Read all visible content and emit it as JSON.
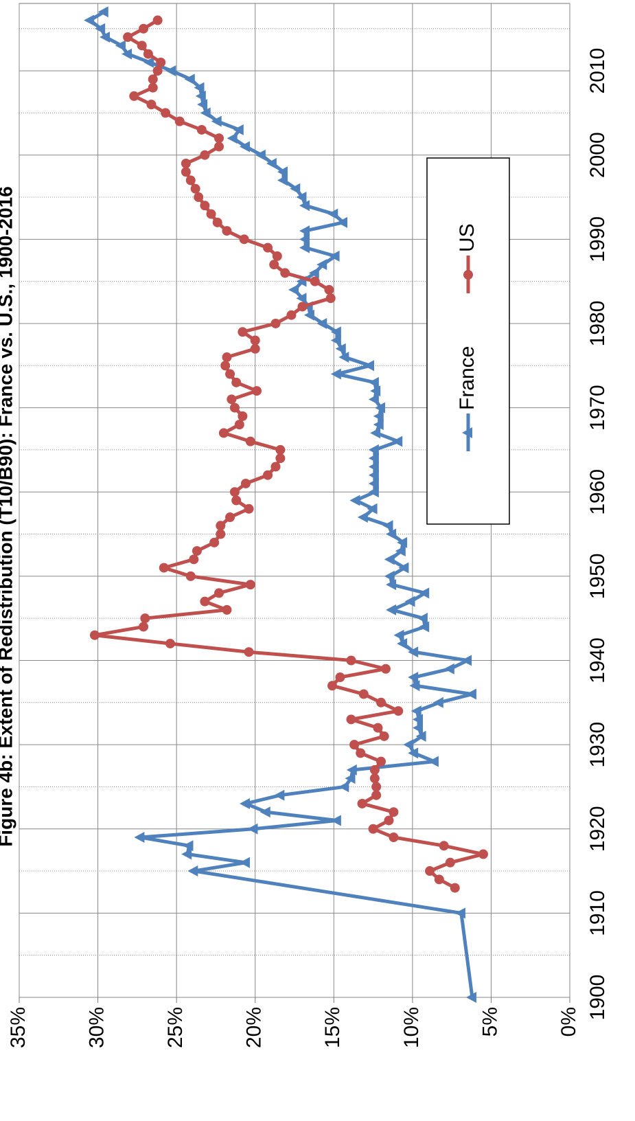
{
  "chart_data": {
    "type": "line",
    "title": "Figure 4b: Extent of Redistribution (T10/B90): France vs. U.S., 1900-2016",
    "xlim": [
      1900,
      2018
    ],
    "xticks": [
      1900,
      1910,
      1920,
      1930,
      1940,
      1950,
      1960,
      1970,
      1980,
      1990,
      2000,
      2010
    ],
    "xminorticks": [
      1905,
      1915,
      1925,
      1935,
      1945,
      1955,
      1965,
      1975,
      1985,
      1995,
      2005,
      2015
    ],
    "ylim": [
      0,
      35
    ],
    "yticks": [
      {
        "value": 0,
        "label": "0%"
      },
      {
        "value": 5,
        "label": "5%"
      },
      {
        "value": 10,
        "label": "10%"
      },
      {
        "value": 15,
        "label": "15%"
      },
      {
        "value": 20,
        "label": "20%"
      },
      {
        "value": 25,
        "label": "25%"
      },
      {
        "value": 30,
        "label": "30%"
      },
      {
        "value": 35,
        "label": "35%"
      }
    ],
    "grid": true,
    "legend": "lower right",
    "series": [
      {
        "name": "France",
        "color": "#4f81bd",
        "marker": "triangle",
        "x": [
          1900,
          1910,
          1915,
          1916,
          1917,
          1918,
          1919,
          1920,
          1921,
          1922,
          1923,
          1924,
          1925,
          1926,
          1927,
          1928,
          1929,
          1930,
          1931,
          1932,
          1933,
          1934,
          1935,
          1936,
          1937,
          1938,
          1939,
          1940,
          1941,
          1942,
          1943,
          1944,
          1945,
          1946,
          1947,
          1948,
          1949,
          1950,
          1951,
          1952,
          1953,
          1954,
          1955,
          1956,
          1957,
          1958,
          1959,
          1960,
          1961,
          1962,
          1963,
          1964,
          1965,
          1966,
          1967,
          1968,
          1969,
          1970,
          1971,
          1972,
          1973,
          1974,
          1975,
          1976,
          1977,
          1978,
          1979,
          1980,
          1981,
          1982,
          1983,
          1984,
          1985,
          1986,
          1987,
          1988,
          1989,
          1990,
          1991,
          1992,
          1993,
          1994,
          1995,
          1996,
          1997,
          1998,
          1999,
          2000,
          2001,
          2002,
          2003,
          2004,
          2005,
          2006,
          2007,
          2008,
          2009,
          2010,
          2011,
          2012,
          2013,
          2014,
          2015,
          2016,
          2017
        ],
        "values": [
          6.2,
          6.9,
          23.9,
          20.6,
          24.3,
          24.2,
          27.3,
          20.1,
          14.8,
          19.3,
          20.6,
          18.4,
          14.3,
          13.9,
          13.8,
          8.6,
          9.9,
          10.2,
          9.4,
          9.6,
          9.6,
          9.7,
          8.3,
          6.2,
          9.8,
          9.9,
          7.6,
          6.5,
          9.9,
          10.6,
          10.8,
          9.2,
          9.3,
          11.3,
          10.1,
          9.2,
          11.3,
          11.4,
          10.5,
          11.4,
          10.7,
          10.6,
          11.3,
          11.5,
          13.1,
          12.5,
          13.6,
          12.4,
          12.4,
          12.4,
          12.4,
          12.4,
          12.4,
          10.9,
          12.3,
          12.1,
          12.1,
          12.0,
          12.4,
          12.3,
          12.4,
          14.8,
          12.7,
          14.3,
          14.5,
          14.8,
          14.8,
          15.7,
          16.5,
          16.6,
          17.0,
          17.5,
          17.0,
          16.2,
          15.7,
          14.9,
          16.8,
          16.8,
          16.8,
          14.4,
          15.0,
          16.8,
          17.0,
          17.4,
          18.2,
          18.2,
          18.9,
          19.6,
          20.6,
          21.4,
          21.0,
          22.4,
          23.1,
          23.3,
          23.4,
          23.5,
          24.1,
          25.3,
          26.7,
          28.1,
          28.5,
          29.5,
          29.8,
          30.5,
          29.6
        ]
      },
      {
        "name": "US",
        "color": "#c0504d",
        "marker": "circle",
        "x": [
          1913,
          1914,
          1915,
          1916,
          1917,
          1918,
          1919,
          1920,
          1921,
          1922,
          1923,
          1924,
          1925,
          1926,
          1927,
          1928,
          1929,
          1930,
          1931,
          1932,
          1933,
          1934,
          1935,
          1936,
          1937,
          1938,
          1939,
          1940,
          1941,
          1942,
          1943,
          1944,
          1945,
          1946,
          1947,
          1948,
          1949,
          1950,
          1951,
          1952,
          1953,
          1954,
          1955,
          1956,
          1957,
          1958,
          1959,
          1960,
          1961,
          1962,
          1963,
          1964,
          1965,
          1966,
          1967,
          1968,
          1969,
          1970,
          1971,
          1972,
          1973,
          1974,
          1975,
          1976,
          1977,
          1978,
          1979,
          1980,
          1981,
          1982,
          1983,
          1984,
          1985,
          1986,
          1987,
          1988,
          1989,
          1990,
          1991,
          1992,
          1993,
          1994,
          1995,
          1996,
          1997,
          1998,
          1999,
          2000,
          2001,
          2002,
          2003,
          2004,
          2005,
          2006,
          2007,
          2008,
          2009,
          2010,
          2011,
          2012,
          2013,
          2014,
          2015,
          2016
        ],
        "values": [
          7.3,
          8.3,
          8.9,
          7.6,
          5.5,
          8.0,
          11.2,
          12.5,
          11.5,
          11.2,
          13.2,
          12.3,
          12.3,
          12.4,
          12.4,
          12.0,
          13.3,
          13.7,
          11.8,
          12.2,
          13.9,
          10.9,
          12.0,
          13.1,
          15.1,
          14.6,
          11.7,
          13.9,
          20.4,
          25.4,
          30.2,
          27.1,
          27.0,
          21.8,
          23.2,
          22.3,
          20.3,
          24.1,
          25.8,
          23.9,
          23.7,
          22.6,
          22.2,
          22.2,
          21.6,
          20.4,
          21.2,
          21.3,
          20.6,
          19.2,
          18.7,
          18.4,
          18.4,
          20.3,
          22.0,
          21.0,
          20.8,
          21.3,
          21.5,
          19.9,
          21.2,
          21.6,
          21.9,
          21.8,
          20.0,
          20.0,
          20.8,
          18.7,
          17.7,
          17.0,
          15.2,
          15.3,
          16.2,
          18.1,
          18.8,
          18.6,
          19.2,
          20.7,
          21.8,
          22.4,
          22.8,
          23.2,
          23.6,
          23.8,
          24.1,
          24.4,
          24.4,
          23.2,
          22.3,
          22.3,
          23.4,
          24.8,
          25.7,
          26.6,
          27.7,
          26.5,
          26.5,
          26.2,
          26.0,
          26.8,
          27.2,
          28.1,
          27.1,
          26.2
        ]
      }
    ]
  }
}
